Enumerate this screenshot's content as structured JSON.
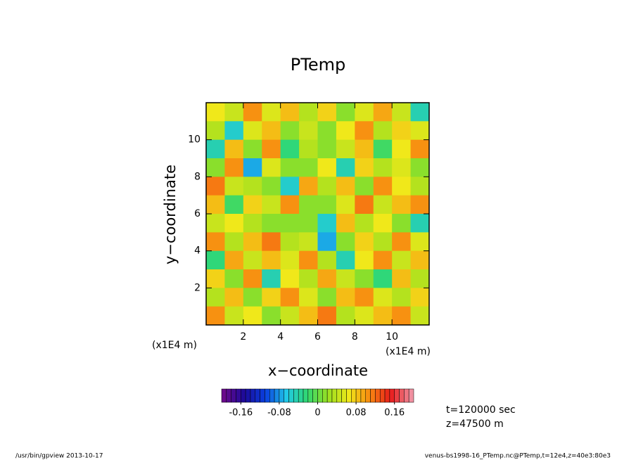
{
  "chart_data": {
    "type": "heatmap",
    "title": "PTemp",
    "x_label": "x−coordinate",
    "y_label": "y−coordinate",
    "unit_label": "(x1E4 m)",
    "xlim": [
      0,
      12
    ],
    "ylim": [
      0,
      12
    ],
    "xticks": [
      2,
      4,
      6,
      8,
      10
    ],
    "yticks": [
      2,
      4,
      6,
      8,
      10
    ],
    "z": [
      [
        0.06,
        0.04,
        0.1,
        0.05,
        0.08,
        0.03,
        0.07,
        0.02,
        0.05,
        0.09,
        0.04,
        -0.05
      ],
      [
        0.03,
        -0.06,
        0.05,
        0.08,
        0.02,
        0.04,
        0.01,
        0.06,
        0.1,
        0.03,
        0.07,
        0.05
      ],
      [
        -0.04,
        0.08,
        0.02,
        0.1,
        -0.03,
        0.03,
        0.02,
        0.04,
        0.08,
        -0.02,
        0.06,
        0.1
      ],
      [
        0.02,
        0.1,
        -0.08,
        0.05,
        0.01,
        0.02,
        0.06,
        -0.04,
        0.07,
        0.03,
        0.05,
        0.02
      ],
      [
        0.12,
        0.04,
        0.03,
        0.02,
        -0.06,
        0.09,
        0.03,
        0.08,
        0.02,
        0.1,
        0.06,
        0.03
      ],
      [
        0.08,
        -0.02,
        0.07,
        0.04,
        0.1,
        0.02,
        0.01,
        0.05,
        0.12,
        0.04,
        0.08,
        0.1
      ],
      [
        0.04,
        0.06,
        0.03,
        0.02,
        0.02,
        0.01,
        -0.06,
        0.08,
        0.03,
        0.06,
        0.02,
        -0.04
      ],
      [
        0.1,
        0.03,
        0.08,
        0.12,
        0.03,
        0.04,
        -0.08,
        0.02,
        0.07,
        0.03,
        0.1,
        0.05
      ],
      [
        -0.03,
        0.09,
        0.04,
        0.08,
        0.05,
        0.1,
        0.03,
        -0.05,
        0.06,
        0.11,
        0.04,
        0.08
      ],
      [
        0.07,
        0.02,
        0.1,
        -0.04,
        0.06,
        0.03,
        0.09,
        0.04,
        0.02,
        -0.03,
        0.08,
        0.03
      ],
      [
        0.03,
        0.08,
        0.02,
        0.07,
        0.11,
        0.05,
        0.02,
        0.08,
        0.1,
        0.05,
        0.03,
        0.07
      ],
      [
        0.1,
        0.04,
        0.06,
        0.02,
        0.04,
        0.08,
        0.12,
        0.03,
        0.05,
        0.08,
        0.1,
        0.04
      ]
    ],
    "clim": [
      -0.2,
      0.2
    ],
    "n_levels": 40,
    "colormap": [
      "#6a0a8c",
      "#1a0a9a",
      "#0a40e0",
      "#20c8e8",
      "#30d870",
      "#9ae020",
      "#f0e81a",
      "#f88a10",
      "#e81a1a",
      "#f090a0"
    ],
    "colorbar_ticks": [
      -0.16,
      -0.08,
      0,
      0.08,
      0.16
    ],
    "annotations": [
      "t=120000 sec",
      "z=47500 m"
    ],
    "footer_left": "/usr/bin/gpview   2013-10-17",
    "footer_right": "venus-bs1998-16_PTemp.nc@PTemp,t=12e4,z=40e3:80e3"
  }
}
